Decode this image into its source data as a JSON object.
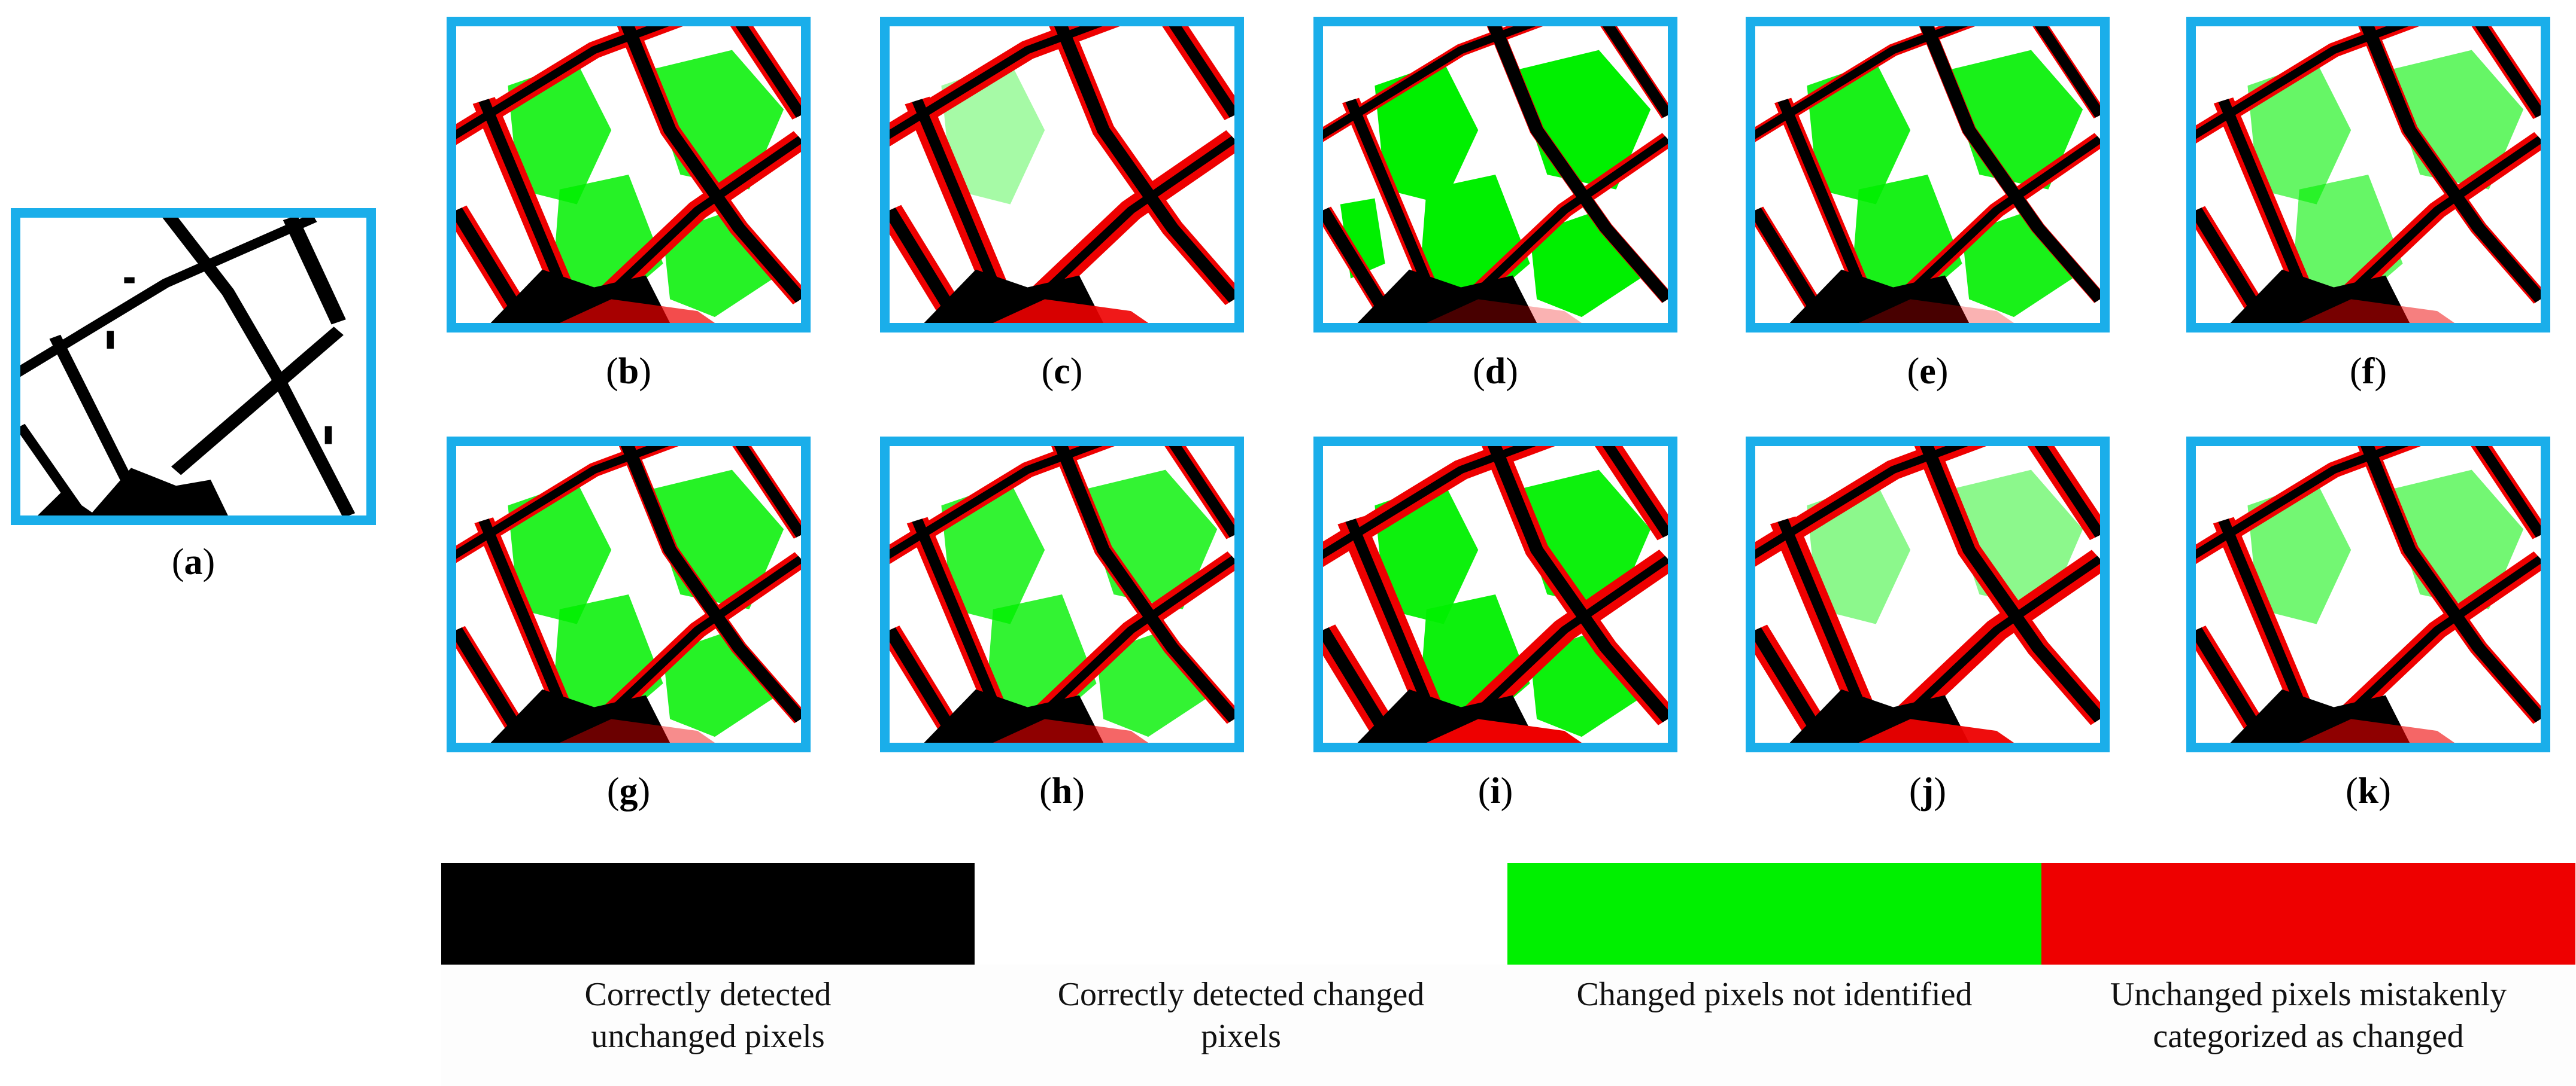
{
  "colors": {
    "frame": "#1AAEEA",
    "unchanged_correct": "#000000",
    "changed_correct": "#ffffff",
    "changed_missed": "#00F000",
    "false_alarm": "#EE0000"
  },
  "panels": [
    {
      "id": "a",
      "letter": "a",
      "kind": "reference"
    },
    {
      "id": "b",
      "letter": "b",
      "kind": "result"
    },
    {
      "id": "c",
      "letter": "c",
      "kind": "result"
    },
    {
      "id": "d",
      "letter": "d",
      "kind": "result"
    },
    {
      "id": "e",
      "letter": "e",
      "kind": "result"
    },
    {
      "id": "f",
      "letter": "f",
      "kind": "result"
    },
    {
      "id": "g",
      "letter": "g",
      "kind": "result"
    },
    {
      "id": "h",
      "letter": "h",
      "kind": "result"
    },
    {
      "id": "i",
      "letter": "i",
      "kind": "result"
    },
    {
      "id": "j",
      "letter": "j",
      "kind": "result"
    },
    {
      "id": "k",
      "letter": "k",
      "kind": "result"
    }
  ],
  "legend": [
    {
      "color": "#000000",
      "label_line1": "Correctly detected",
      "label_line2": "unchanged pixels"
    },
    {
      "color": "#ffffff",
      "label_line1": "Correctly detected changed",
      "label_line2": "pixels"
    },
    {
      "color": "#00F000",
      "label_line1": "Changed pixels not identified",
      "label_line2": ""
    },
    {
      "color": "#EE0000",
      "label_line1": "Unchanged pixels mistakenly",
      "label_line2": "categorized as changed"
    }
  ]
}
